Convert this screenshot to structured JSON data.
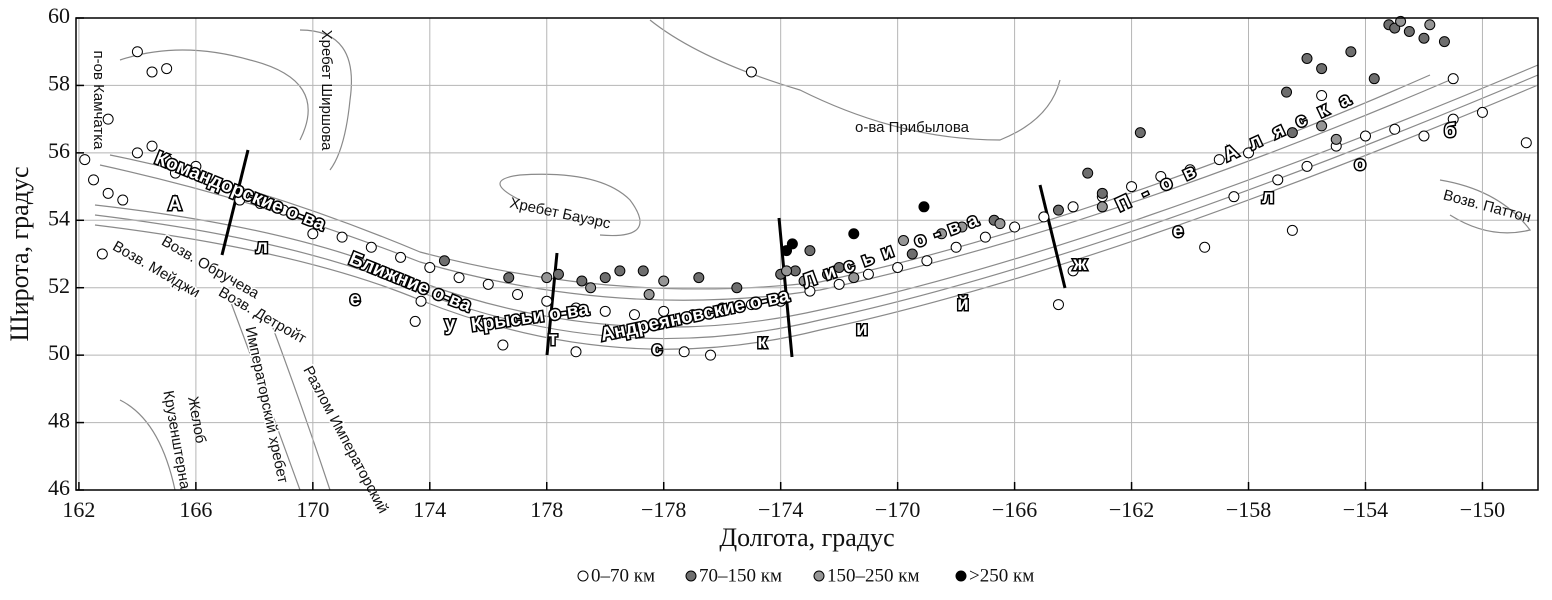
{
  "chart_data": {
    "type": "scatter",
    "xlabel": "Долгота, градус",
    "ylabel": "Широта, градус",
    "xlim": [
      161.9,
      211.9
    ],
    "ylim": [
      46,
      60
    ],
    "xticks": [
      162,
      166,
      170,
      174,
      178,
      {
        "value": 182,
        "label": "−178"
      },
      {
        "value": 186,
        "label": "−174"
      },
      {
        "value": 190,
        "label": "−170"
      },
      {
        "value": 194,
        "label": "−166"
      },
      {
        "value": 198,
        "label": "−162"
      },
      {
        "value": 202,
        "label": "−158"
      },
      {
        "value": 206,
        "label": "−154"
      },
      {
        "value": 210,
        "label": "−150"
      }
    ],
    "yticks": [
      46,
      48,
      50,
      52,
      54,
      56,
      58,
      60
    ],
    "grid": true,
    "legend": "bottom",
    "series": [
      {
        "name": "0–70 км",
        "color": "#ffffff",
        "x": [
          162.2,
          162.5,
          163,
          163.5,
          164,
          164.5,
          165,
          165.3,
          166,
          167,
          167.5,
          168.2,
          169,
          170,
          171,
          172,
          173,
          174,
          175,
          176,
          177,
          178,
          179,
          180,
          181,
          182,
          183,
          184,
          185,
          186,
          187,
          188,
          189,
          190,
          191,
          192,
          193,
          194,
          195,
          196,
          197,
          198,
          199,
          200,
          201,
          202,
          203,
          204,
          205,
          206,
          207,
          208,
          209,
          210,
          211.5,
          162.8,
          164.5,
          165,
          185,
          176.5,
          179,
          182.7,
          183.6,
          173.5,
          173.7,
          203.5,
          195.5,
          196,
          200.5,
          204.5,
          201.5,
          209,
          163,
          164
        ],
        "y": [
          55.8,
          55.2,
          54.8,
          54.6,
          56,
          56.2,
          55.8,
          55.4,
          55.6,
          55,
          54.6,
          54.5,
          54.3,
          53.6,
          53.5,
          53.2,
          52.9,
          52.6,
          52.3,
          52.1,
          51.8,
          51.6,
          51.4,
          51.3,
          51.2,
          51.3,
          51.2,
          51.4,
          51.5,
          51.6,
          51.9,
          52.1,
          52.4,
          52.6,
          52.8,
          53.2,
          53.5,
          53.8,
          54.1,
          54.4,
          54.7,
          55,
          55.3,
          55.5,
          55.8,
          56,
          55.2,
          55.6,
          56.2,
          56.5,
          56.7,
          56.5,
          57,
          57.2,
          56.3,
          53,
          58.4,
          58.5,
          58.4,
          50.3,
          50.1,
          50.1,
          50,
          51,
          51.6,
          53.7,
          51.5,
          52.5,
          53.2,
          57.7,
          54.7,
          58.2,
          57,
          59
        ]
      },
      {
        "name": "70–150 км",
        "color": "#6e6e6e",
        "x": [
          178.4,
          179.2,
          180,
          180.5,
          181.3,
          183.2,
          184.5,
          186,
          186.5,
          187,
          187.6,
          188,
          190.5,
          193.3,
          195.5,
          196.5,
          197,
          198.3,
          203.3,
          204,
          204.5,
          205.5,
          206.3,
          206.8,
          207,
          207.5,
          208,
          208.7,
          203.5,
          174.5,
          176.7
        ],
        "y": [
          52.4,
          52.2,
          52.3,
          52.5,
          52.5,
          52.3,
          52,
          52.4,
          52.5,
          53.1,
          52.4,
          52.6,
          53,
          54,
          54.3,
          55.4,
          54.8,
          56.6,
          57.8,
          58.8,
          58.5,
          59,
          58.2,
          59.8,
          59.7,
          59.6,
          59.4,
          59.3,
          56.6,
          52.8,
          52.3
        ]
      },
      {
        "name": "150–250 км",
        "color": "#969696",
        "x": [
          178,
          179.5,
          181.5,
          182,
          186.2,
          186.8,
          188.5,
          190.2,
          191.5,
          192.2,
          193.5,
          204.5,
          205,
          207.2,
          208.2,
          197
        ],
        "y": [
          52.3,
          52,
          51.8,
          52.2,
          52.5,
          52.2,
          52.3,
          53.4,
          53.6,
          53.8,
          53.9,
          56.8,
          56.4,
          59.9,
          59.8,
          54.4
        ]
      },
      {
        "name": ">250 км",
        "color": "#000000",
        "x": [
          186.4,
          188.5,
          190.9,
          186.2
        ],
        "y": [
          53.3,
          53.6,
          54.4,
          53.1
        ]
      }
    ],
    "annotations": [
      "п-ов Камчатка",
      "Хребет Ширшова",
      "Командорские о-ва",
      "Ближние о-ва",
      "Крысьи о-ва",
      "Андреяновские о-ва",
      "Лисьи о-ва",
      "о-ва Прибылова",
      "Хребет Бауэрс",
      "Возв. Обручева",
      "Возв. Мейджи",
      "Возв. Детройт",
      "Императорский хребет",
      "Разлом Императорский",
      "Крузенштерна",
      "Желоб",
      "Возв. Паттон",
      "П-ов Аляска"
    ],
    "trench_letters": [
      "А",
      "л",
      "е",
      "у",
      "т",
      "с",
      "к",
      "и",
      "й",
      "ж",
      "е",
      "л",
      "о",
      "б"
    ]
  }
}
